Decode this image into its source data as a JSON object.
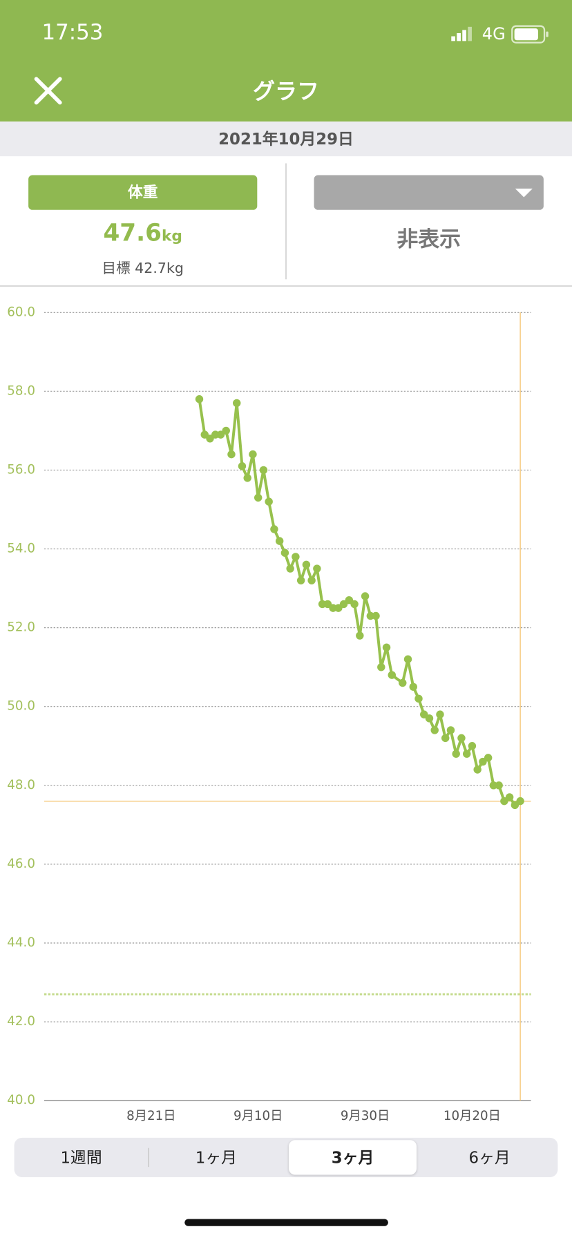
{
  "status_bar": {
    "time": "17:53",
    "network": "4G"
  },
  "header": {
    "title": "グラフ"
  },
  "date": "2021年10月29日",
  "left_panel": {
    "button": "体重",
    "value": 47.6,
    "unit": "kg",
    "goal_label": "目標",
    "goal_value": 42.7,
    "goal_unit": "kg"
  },
  "right_panel": {
    "label": "非表示"
  },
  "chart_data": {
    "type": "line",
    "x": [
      "8月30日",
      "8月31日",
      "9月1日",
      "9月2日",
      "9月3日",
      "9月4日",
      "9月5日",
      "9月6日",
      "9月7日",
      "9月8日",
      "9月9日",
      "9月10日",
      "9月11日",
      "9月12日",
      "9月13日",
      "9月14日",
      "9月15日",
      "9月16日",
      "9月17日",
      "9月18日",
      "9月19日",
      "9月20日",
      "9月21日",
      "9月22日",
      "9月23日",
      "9月24日",
      "9月25日",
      "9月26日",
      "9月27日",
      "9月28日",
      "9月29日",
      "9月30日",
      "10月1日",
      "10月2日",
      "10月3日",
      "10月4日",
      "10月5日",
      "10月7日",
      "10月8日",
      "10月9日",
      "10月10日",
      "10月11日",
      "10月12日",
      "10月13日",
      "10月14日",
      "10月15日",
      "10月16日",
      "10月17日",
      "10月18日",
      "10月19日",
      "10月20日",
      "10月21日",
      "10月22日",
      "10月23日",
      "10月24日",
      "10月25日",
      "10月26日",
      "10月27日",
      "10月28日",
      "10月29日"
    ],
    "series": [
      {
        "color": "#97c14d",
        "values": [
          57.8,
          56.9,
          56.8,
          56.9,
          56.9,
          57.0,
          56.4,
          57.7,
          56.1,
          55.8,
          56.4,
          55.3,
          56.0,
          55.2,
          54.5,
          54.2,
          53.9,
          53.5,
          53.8,
          53.2,
          53.6,
          53.2,
          53.5,
          52.6,
          52.6,
          52.5,
          52.5,
          52.6,
          52.7,
          52.6,
          51.8,
          52.8,
          52.3,
          52.3,
          51.0,
          51.5,
          50.8,
          50.6,
          51.2,
          50.5,
          50.2,
          49.8,
          49.7,
          49.4,
          49.8,
          49.2,
          49.4,
          48.8,
          49.2,
          48.8,
          49.0,
          48.4,
          48.6,
          48.7,
          48.0,
          48.0,
          47.6,
          47.7,
          47.5,
          47.6
        ]
      }
    ],
    "xlim": [
      "8月1日",
      "10月31日"
    ],
    "xticks": [
      "8月21日",
      "9月10日",
      "9月30日",
      "10月20日"
    ],
    "ylim": [
      40,
      60
    ],
    "yticks": [
      {
        "value": 40,
        "label": "40.0"
      },
      {
        "value": 42,
        "label": "42.0"
      },
      {
        "value": 44,
        "label": "44.0"
      },
      {
        "value": 46,
        "label": "46.0"
      },
      {
        "value": 48,
        "label": "48.0"
      },
      {
        "value": 50,
        "label": "50.0"
      },
      {
        "value": 52,
        "label": "52.0"
      },
      {
        "value": 54,
        "label": "54.0"
      },
      {
        "value": 56,
        "label": "56.0"
      },
      {
        "value": 58,
        "label": "58.0"
      },
      {
        "value": 60,
        "label": "60.0"
      }
    ],
    "grid": true
  },
  "tabs": {
    "items": [
      "1週間",
      "1ヶ月",
      "3ヶ月",
      "6ヶ月"
    ],
    "selected": 2
  }
}
